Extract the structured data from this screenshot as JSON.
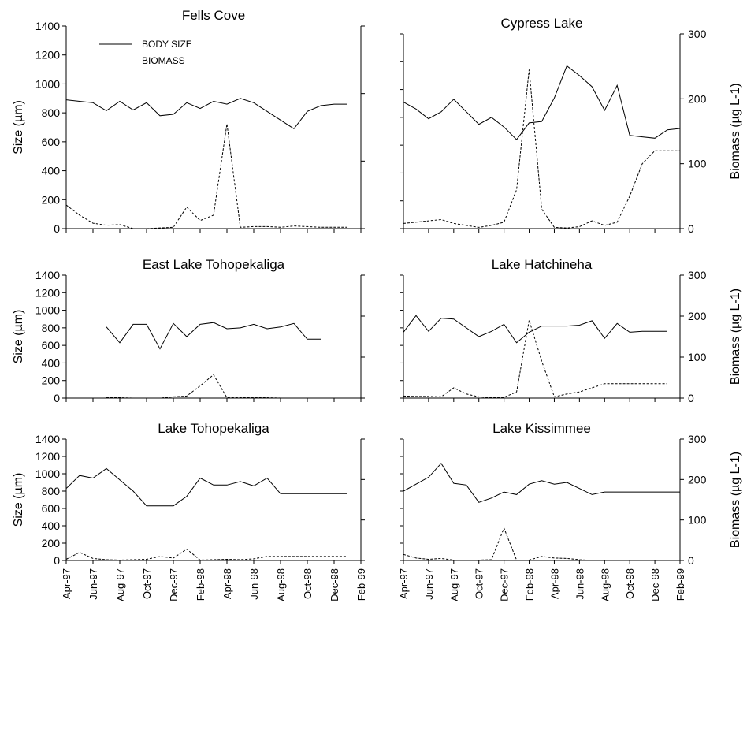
{
  "chart_data": [
    {
      "type": "line",
      "title": "Fells Cove",
      "ylabel": "Size (µm)",
      "ylabel_right": "",
      "ylim": [
        0,
        1400
      ],
      "ylim_right": [
        0,
        300
      ],
      "yticks": [
        "0",
        "200",
        "400",
        "600",
        "800",
        "1000",
        "1200",
        "1400"
      ],
      "yticks_right": [],
      "x_ticks": [],
      "legend": {
        "position": "top-left",
        "entries": [
          "BODY SIZE",
          "BIOMASS"
        ]
      },
      "series": [
        {
          "name": "BODY SIZE",
          "axis": "left",
          "style": "solid",
          "x": [
            0,
            1,
            2,
            3,
            4,
            5,
            6,
            7,
            8,
            9,
            10,
            11,
            12,
            13,
            14,
            15,
            16,
            17,
            18,
            19,
            20,
            21
          ],
          "y": [
            890,
            880,
            870,
            815,
            880,
            820,
            870,
            780,
            790,
            870,
            830,
            880,
            860,
            900,
            870,
            810,
            750,
            690,
            810,
            850,
            860,
            860
          ]
        },
        {
          "name": "BIOMASS",
          "axis": "right",
          "style": "dashed",
          "x": [
            0,
            1,
            2,
            3,
            4,
            5,
            6,
            7,
            8,
            9,
            10,
            11,
            12,
            13,
            14,
            15,
            16,
            17,
            18,
            19,
            20,
            21
          ],
          "y": [
            35,
            20,
            8,
            5,
            6,
            0,
            0,
            1,
            2,
            32,
            12,
            20,
            155,
            2,
            3,
            3,
            2,
            4,
            3,
            2,
            2,
            2
          ]
        }
      ]
    },
    {
      "type": "line",
      "title": "Cypress Lake",
      "ylabel": "",
      "ylabel_right": "Biomass (µg L-1)",
      "ylim": [
        0,
        1400
      ],
      "ylim_right": [
        0,
        300
      ],
      "yticks": [],
      "yticks_right": [
        "0",
        "100",
        "200",
        "300"
      ],
      "x_ticks": [],
      "legend": null,
      "series": [
        {
          "name": "BODY SIZE",
          "axis": "left",
          "style": "solid",
          "x": [
            0,
            1,
            2,
            3,
            4,
            5,
            6,
            7,
            8,
            9,
            10,
            11,
            12,
            13,
            14,
            15,
            16,
            17,
            18,
            19,
            20,
            21,
            22
          ],
          "y": [
            910,
            860,
            790,
            840,
            930,
            840,
            750,
            800,
            730,
            640,
            760,
            770,
            940,
            1170,
            1100,
            1020,
            850,
            1030,
            670,
            660,
            650,
            710,
            720
          ]
        },
        {
          "name": "BIOMASS",
          "axis": "right",
          "style": "dashed",
          "x": [
            0,
            1,
            2,
            3,
            4,
            5,
            6,
            7,
            8,
            9,
            10,
            11,
            12,
            13,
            14,
            15,
            16,
            17,
            18,
            19,
            20,
            21,
            22
          ],
          "y": [
            8,
            10,
            12,
            14,
            8,
            5,
            2,
            5,
            10,
            60,
            245,
            30,
            2,
            1,
            3,
            12,
            5,
            10,
            50,
            100,
            120,
            120,
            120
          ]
        }
      ]
    },
    {
      "type": "line",
      "title": "East Lake Tohopekaliga",
      "ylabel": "Size (µm)",
      "ylabel_right": "",
      "ylim": [
        0,
        1400
      ],
      "ylim_right": [
        0,
        300
      ],
      "yticks": [
        "0",
        "200",
        "400",
        "600",
        "800",
        "1000",
        "1200",
        "1400"
      ],
      "yticks_right": [],
      "x_ticks": [],
      "legend": null,
      "series": [
        {
          "name": "BODY SIZE",
          "axis": "left",
          "style": "solid",
          "x": [
            3,
            4,
            5,
            6,
            7,
            8,
            9,
            10,
            11,
            12,
            13,
            14,
            15,
            16,
            17,
            18,
            19
          ],
          "y": [
            810,
            630,
            840,
            840,
            560,
            850,
            700,
            840,
            860,
            790,
            800,
            840,
            790,
            810,
            850,
            670,
            670
          ]
        },
        {
          "name": "BIOMASS",
          "axis": "right",
          "style": "dashed",
          "x": [
            3,
            4,
            5,
            6,
            7,
            8,
            9,
            10,
            11,
            12,
            13,
            14,
            15,
            16,
            17,
            18,
            19
          ],
          "y": [
            1,
            1,
            0,
            0,
            0,
            3,
            5,
            30,
            57,
            1,
            1,
            1,
            1,
            0,
            0,
            0,
            0
          ]
        }
      ]
    },
    {
      "type": "line",
      "title": "Lake Hatchineha",
      "ylabel": "",
      "ylabel_right": "Biomass (µg L-1)",
      "ylim": [
        0,
        1400
      ],
      "ylim_right": [
        0,
        300
      ],
      "yticks": [],
      "yticks_right": [
        "0",
        "100",
        "200",
        "300"
      ],
      "x_ticks": [],
      "legend": null,
      "series": [
        {
          "name": "BODY SIZE",
          "axis": "left",
          "style": "solid",
          "x": [
            0,
            1,
            2,
            3,
            4,
            5,
            6,
            7,
            8,
            9,
            10,
            11,
            12,
            13,
            14,
            15,
            16,
            17,
            18,
            19,
            20,
            21
          ],
          "y": [
            750,
            940,
            760,
            910,
            900,
            800,
            700,
            760,
            840,
            630,
            750,
            820,
            820,
            820,
            830,
            880,
            680,
            850,
            750,
            760,
            760,
            760
          ]
        },
        {
          "name": "BIOMASS",
          "axis": "right",
          "style": "dashed",
          "x": [
            0,
            1,
            2,
            3,
            4,
            5,
            6,
            7,
            8,
            9,
            10,
            11,
            12,
            13,
            14,
            15,
            16,
            17,
            18,
            19,
            20,
            21
          ],
          "y": [
            5,
            4,
            4,
            3,
            25,
            10,
            3,
            1,
            2,
            15,
            190,
            90,
            3,
            10,
            15,
            25,
            35,
            35,
            35,
            35,
            35,
            35
          ]
        }
      ]
    },
    {
      "type": "line",
      "title": "Lake Tohopekaliga",
      "ylabel": "Size (µm)",
      "ylabel_right": "",
      "ylim": [
        0,
        1400
      ],
      "ylim_right": [
        0,
        300
      ],
      "yticks": [
        "0",
        "200",
        "400",
        "600",
        "800",
        "1000",
        "1200",
        "1400"
      ],
      "yticks_right": [],
      "x_ticks": [
        "Apr-97",
        "Jun-97",
        "Aug-97",
        "Oct-97",
        "Dec-97",
        "Feb-98",
        "Apr-98",
        "Jun-98",
        "Aug-98",
        "Oct-98",
        "Dec-98",
        "Feb-99"
      ],
      "legend": null,
      "series": [
        {
          "name": "BODY SIZE",
          "axis": "left",
          "style": "solid",
          "x": [
            0,
            1,
            2,
            3,
            4,
            5,
            6,
            7,
            8,
            9,
            10,
            11,
            12,
            13,
            14,
            15,
            16,
            17,
            18,
            19,
            20,
            21
          ],
          "y": [
            830,
            980,
            950,
            1060,
            930,
            800,
            630,
            630,
            630,
            740,
            950,
            870,
            870,
            910,
            860,
            950,
            770,
            770,
            770,
            770,
            770,
            770
          ]
        },
        {
          "name": "BIOMASS",
          "axis": "right",
          "style": "dashed",
          "x": [
            0,
            1,
            2,
            3,
            4,
            5,
            6,
            7,
            8,
            9,
            10,
            11,
            12,
            13,
            14,
            15,
            16,
            17,
            18,
            19,
            20,
            21
          ],
          "y": [
            3,
            20,
            5,
            2,
            1,
            2,
            3,
            10,
            6,
            28,
            1,
            2,
            3,
            2,
            4,
            10,
            10,
            10,
            10,
            10,
            10,
            10
          ]
        }
      ]
    },
    {
      "type": "line",
      "title": "Lake Kissimmee",
      "ylabel": "",
      "ylabel_right": "Biomass (µg L-1)",
      "ylim": [
        0,
        1400
      ],
      "ylim_right": [
        0,
        300
      ],
      "yticks": [],
      "yticks_right": [
        "0",
        "100",
        "200",
        "300"
      ],
      "x_ticks": [
        "Apr-97",
        "Jun-97",
        "Aug-97",
        "Oct-97",
        "Dec-97",
        "Feb-98",
        "Apr-98",
        "Jun-98",
        "Aug-98",
        "Oct-98",
        "Dec-98",
        "Feb-99"
      ],
      "legend": null,
      "series": [
        {
          "name": "BODY SIZE",
          "axis": "left",
          "style": "solid",
          "x": [
            0,
            1,
            2,
            3,
            4,
            5,
            6,
            7,
            8,
            9,
            10,
            11,
            12,
            13,
            14,
            15,
            16,
            17,
            18,
            19,
            20,
            21,
            22
          ],
          "y": [
            800,
            880,
            960,
            1120,
            890,
            870,
            670,
            720,
            790,
            760,
            880,
            920,
            880,
            900,
            830,
            760,
            790,
            790,
            790,
            790,
            790,
            790,
            790
          ]
        },
        {
          "name": "BIOMASS",
          "axis": "right",
          "style": "dashed",
          "x": [
            0,
            1,
            2,
            3,
            4,
            5,
            6,
            7,
            8,
            9,
            10,
            11,
            12,
            13,
            14,
            15,
            16,
            17,
            18,
            19,
            20,
            21,
            22
          ],
          "y": [
            15,
            6,
            3,
            5,
            1,
            1,
            1,
            2,
            80,
            1,
            1,
            10,
            6,
            5,
            2,
            0,
            0,
            0,
            0,
            0,
            0,
            0,
            0
          ]
        }
      ]
    }
  ]
}
